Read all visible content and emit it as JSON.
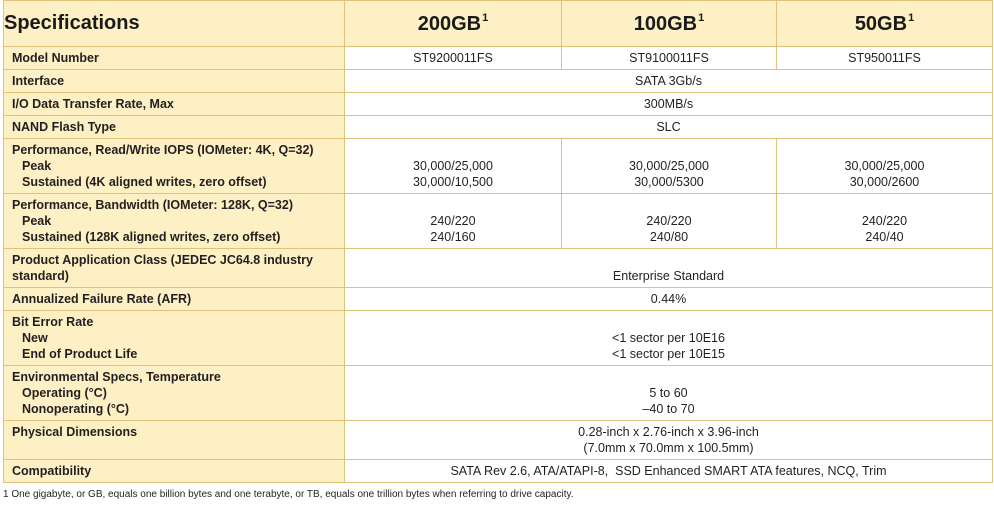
{
  "header": {
    "title": "Specifications",
    "columns": [
      {
        "label": "200GB",
        "note": "1"
      },
      {
        "label": "100GB",
        "note": "1"
      },
      {
        "label": "50GB",
        "note": "1"
      }
    ]
  },
  "rows": {
    "model": {
      "label": "Model Number",
      "values": [
        "ST9200011FS",
        "ST9100011FS",
        "ST950011FS"
      ]
    },
    "interface": {
      "label": "Interface",
      "value": "SATA 3Gb/s"
    },
    "transfer": {
      "label": "I/O Data Transfer Rate, Max",
      "value": "300MB/s"
    },
    "nand": {
      "label": "NAND Flash Type",
      "value": "SLC"
    },
    "iops": {
      "label": "Performance, Read/Write IOPS (IOMeter: 4K, Q=32)",
      "sub": [
        "Peak",
        "Sustained (4K aligned writes, zero offset)"
      ],
      "values": [
        [
          "30,000/25,000",
          "30,000/10,500"
        ],
        [
          "30,000/25,000",
          "30,000/5300"
        ],
        [
          "30,000/25,000",
          "30,000/2600"
        ]
      ]
    },
    "bandwidth": {
      "label": "Performance, Bandwidth (IOMeter: 128K, Q=32)",
      "sub": [
        "Peak",
        "Sustained (128K aligned writes, zero offset)"
      ],
      "values": [
        [
          "240/220",
          "240/160"
        ],
        [
          "240/220",
          "240/80"
        ],
        [
          "240/220",
          "240/40"
        ]
      ]
    },
    "app_class": {
      "label": "Product Application Class (JEDEC JC64.8 industry standard)",
      "value": "Enterprise Standard"
    },
    "afr": {
      "label": "Annualized Failure Rate (AFR)",
      "value": "0.44%"
    },
    "ber": {
      "label": "Bit Error Rate",
      "sub": [
        "New",
        "End of Product Life"
      ],
      "values": [
        "<1 sector per 10E16",
        "<1 sector per 10E15"
      ]
    },
    "env": {
      "label": "Environmental Specs, Temperature",
      "sub": [
        "Operating (°C)",
        "Nonoperating (°C)"
      ],
      "values": [
        "5 to 60",
        "–40 to 70"
      ]
    },
    "dims": {
      "label": "Physical Dimensions",
      "values": [
        "0.28-inch x 2.76-inch x 3.96-inch",
        "(7.0mm x 70.0mm x 100.5mm)"
      ]
    },
    "compat": {
      "label": "Compatibility",
      "value": "SATA Rev 2.6, ATA/ATAPI-8,  SSD Enhanced SMART ATA features, NCQ, Trim"
    }
  },
  "footnote": "1 One gigabyte, or GB, equals one billion bytes and one terabyte, or TB, equals one trillion bytes when referring to drive capacity.",
  "colors": {
    "header_bg": "#fdf0c4",
    "border": "#e2c27a"
  }
}
